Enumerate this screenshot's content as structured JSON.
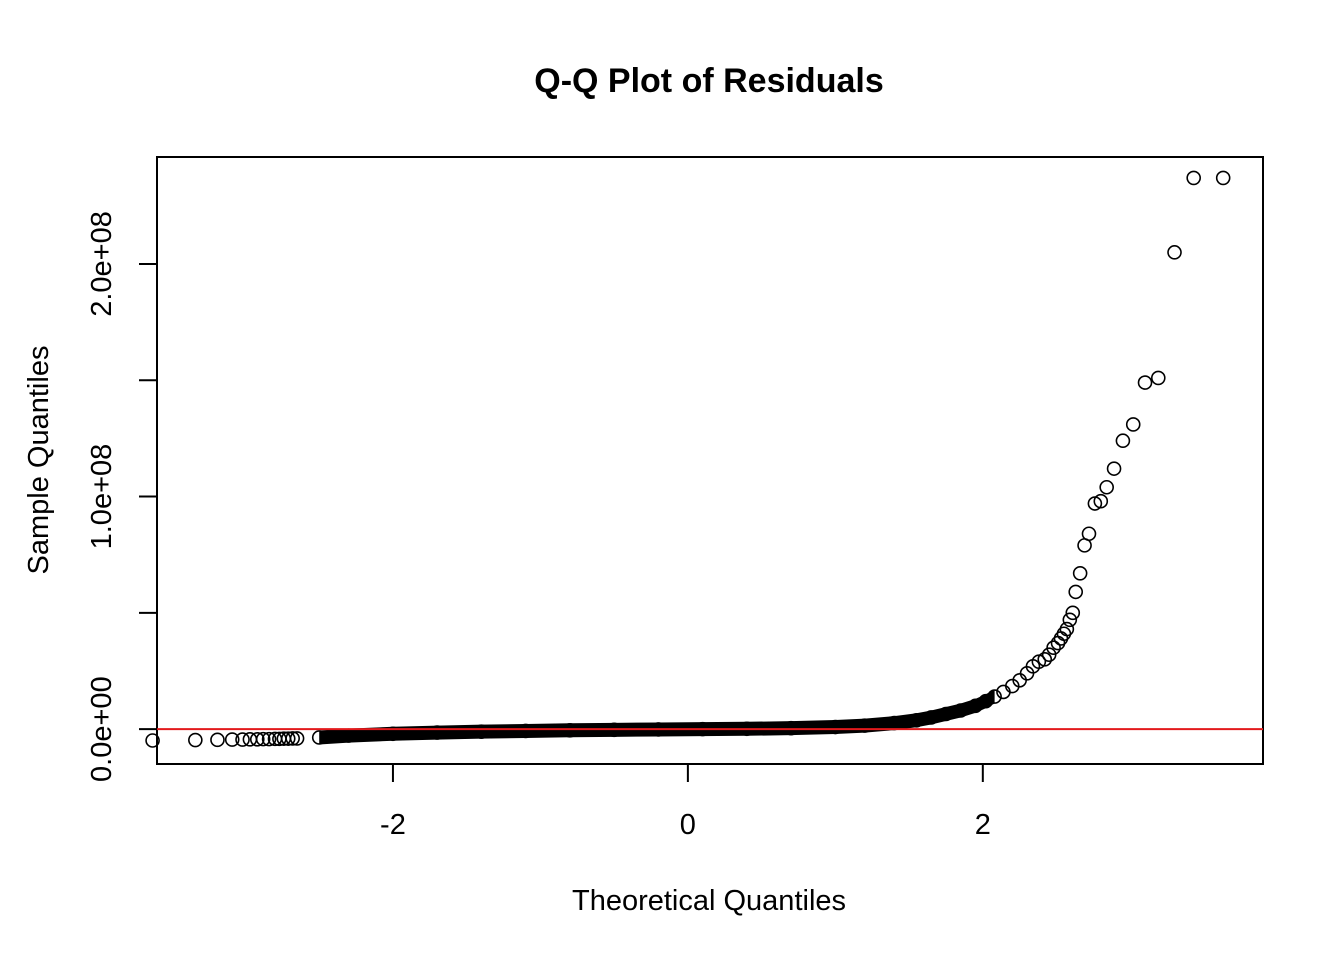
{
  "chart_data": {
    "type": "scatter",
    "title": "Q-Q Plot of Residuals",
    "xlabel": "Theoretical Quantiles",
    "ylabel": "Sample Quantiles",
    "xlim": [
      -3.6,
      3.9
    ],
    "ylim": [
      -15000000,
      246000000
    ],
    "x_ticks": [
      -2,
      0,
      2
    ],
    "x_tick_labels": [
      "-2",
      "0",
      "2"
    ],
    "y_ticks": [
      0,
      50000000,
      100000000,
      150000000,
      200000000
    ],
    "y_tick_labels": [
      "0.0e+00",
      "",
      "1.0e+08",
      "",
      "2.0e+08"
    ],
    "grid": false,
    "legend": "none",
    "point_style": "open-circle",
    "point_color": "#000000",
    "line_color": "#e31a1c",
    "reference_line": {
      "intercept": 0,
      "slope": 0
    },
    "series": [
      {
        "x": [
          -3.63,
          -3.34,
          -3.19,
          -3.09,
          -3.02,
          -2.97,
          -2.92,
          -2.88,
          -2.84,
          -2.8,
          -2.77,
          -2.74,
          -2.71,
          -2.68,
          -2.65,
          -2.5,
          -2.3,
          -2.0,
          -1.7,
          -1.4,
          -1.1,
          -0.8,
          -0.5,
          -0.2,
          0.1,
          0.4,
          0.7,
          1.0,
          1.2,
          1.4,
          1.55,
          1.65,
          1.75,
          1.85,
          1.95,
          2.02,
          2.08,
          2.14,
          2.2,
          2.25,
          2.3,
          2.34,
          2.38,
          2.42,
          2.45,
          2.48,
          2.51,
          2.53,
          2.55,
          2.57,
          2.59,
          2.61,
          2.63,
          2.66,
          2.69,
          2.72,
          2.76,
          2.8,
          2.84,
          2.89,
          2.95,
          3.02,
          3.1,
          3.19,
          3.3,
          3.43,
          3.63
        ],
        "y": [
          -4900000,
          -4700000,
          -4600000,
          -4500000,
          -4500000,
          -4400000,
          -4400000,
          -4300000,
          -4300000,
          -4200000,
          -4200000,
          -4100000,
          -4100000,
          -4000000,
          -4000000,
          -3600000,
          -2800000,
          -2000000,
          -1500000,
          -1100000,
          -800000,
          -500000,
          -300000,
          -150000,
          0,
          150000,
          400000,
          900000,
          1500000,
          2600000,
          3800000,
          5000000,
          6500000,
          8000000,
          10000000,
          12000000,
          14000000,
          16000000,
          18500000,
          21000000,
          24000000,
          27000000,
          29000000,
          30000000,
          32000000,
          35000000,
          37000000,
          39000000,
          41000000,
          43000000,
          47000000,
          50000000,
          59000000,
          67000000,
          79000000,
          84000000,
          97000000,
          98000000,
          104000000,
          112000000,
          124000000,
          131000000,
          149000000,
          151000000,
          205000000,
          237000000,
          237000000
        ]
      }
    ]
  }
}
